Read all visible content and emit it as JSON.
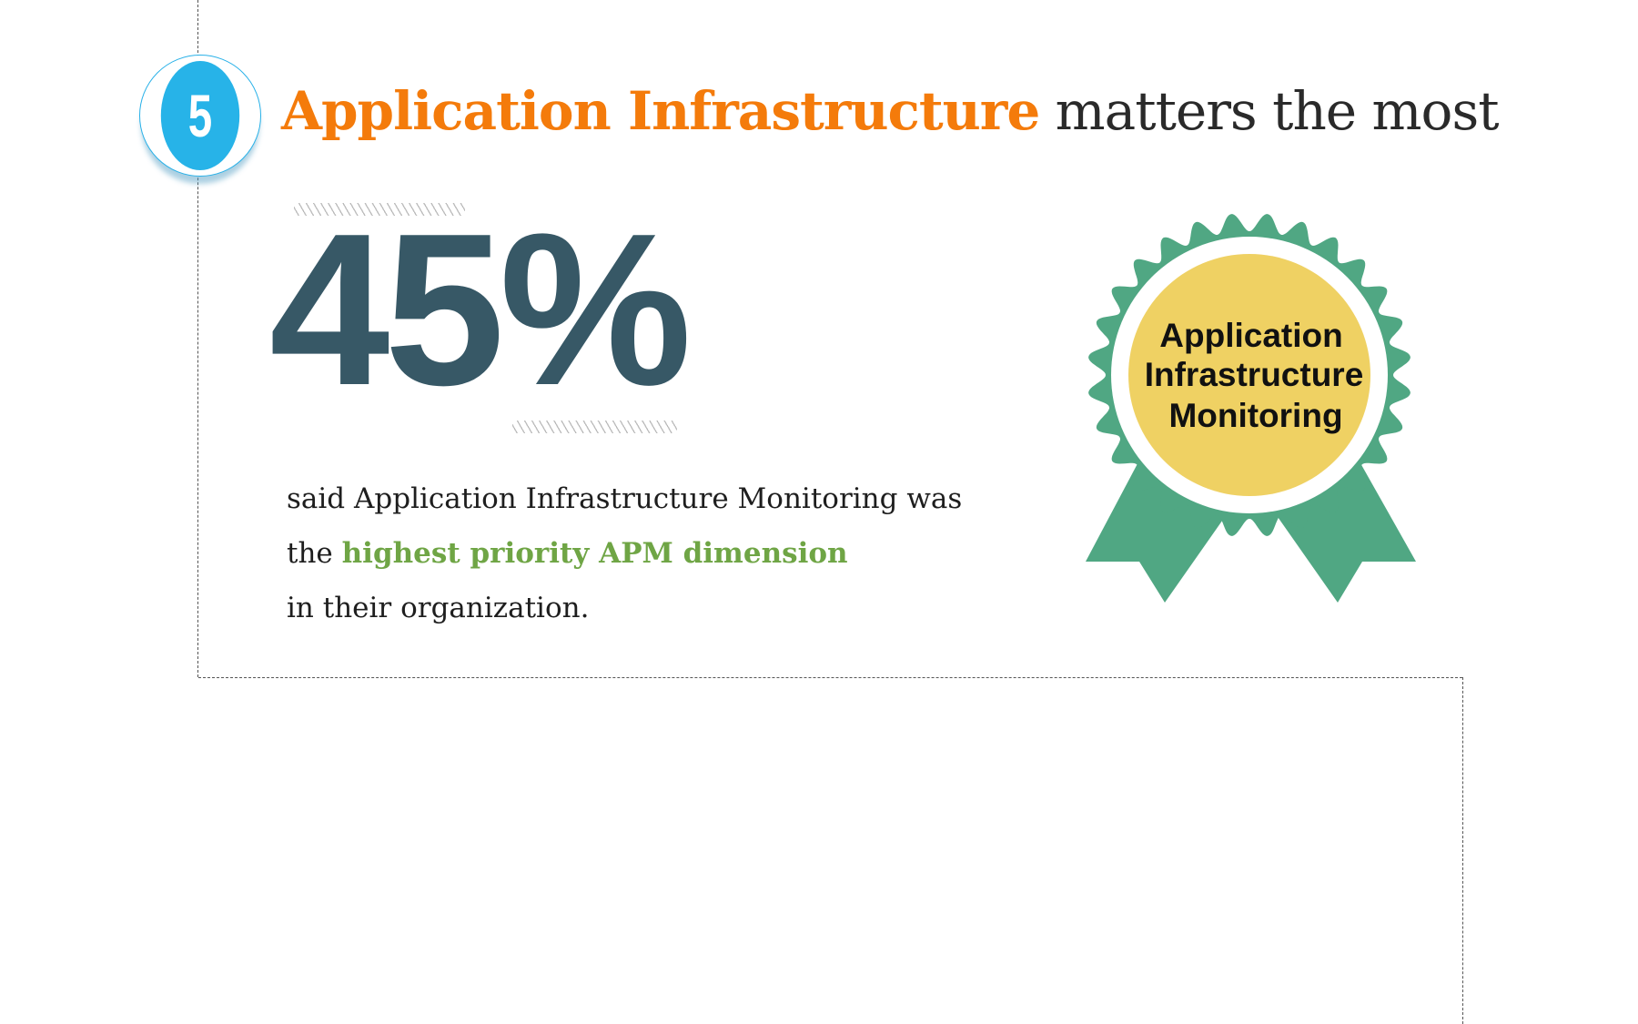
{
  "section_number": "5",
  "title": {
    "highlight": "Application Infrastructure",
    "rest": " matters the most"
  },
  "stat": {
    "value": "45%",
    "percent": 45
  },
  "description": {
    "line1": "said Application Infrastructure Monitoring was",
    "line2_prefix": "the ",
    "line2_highlight": "highest priority APM dimension",
    "line3": "in their organization."
  },
  "badge": {
    "line1": "Application",
    "line2": "Infrastructure",
    "line3": "Monitoring"
  },
  "colors": {
    "accent_orange": "#f47b0b",
    "stat_slate": "#375866",
    "highlight_green": "#6fa545",
    "number_blue": "#27b3e8",
    "badge_green": "#50a783",
    "badge_yellow": "#efd163"
  }
}
